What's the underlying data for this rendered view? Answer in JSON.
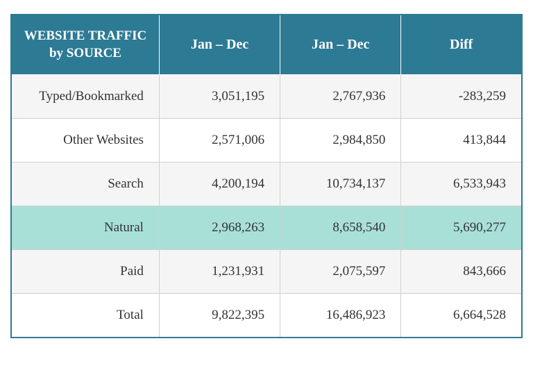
{
  "table": {
    "columns": [
      "WEBSITE TRAFFIC by SOURCE",
      "Jan – Dec",
      "Jan – Dec",
      "Diff"
    ],
    "rows": [
      {
        "label": "Typed/Bookmarked",
        "period1": "3,051,195",
        "period2": "2,767,936",
        "diff": "-283,259",
        "highlight": false
      },
      {
        "label": "Other Websites",
        "period1": "2,571,006",
        "period2": "2,984,850",
        "diff": "413,844",
        "highlight": false
      },
      {
        "label": "Search",
        "period1": "4,200,194",
        "period2": "10,734,137",
        "diff": "6,533,943",
        "highlight": false
      },
      {
        "label": "Natural",
        "period1": "2,968,263",
        "period2": "8,658,540",
        "diff": "5,690,277",
        "highlight": true
      },
      {
        "label": "Paid",
        "period1": "1,231,931",
        "period2": "2,075,597",
        "diff": "843,666",
        "highlight": false
      },
      {
        "label": "Total",
        "period1": "9,822,395",
        "period2": "16,486,923",
        "diff": "6,664,528",
        "highlight": false
      }
    ],
    "header_bg": "#2d7a94",
    "header_text_color": "#ffffff",
    "row_alt_bg": "#f5f5f5",
    "row_bg": "#ffffff",
    "highlight_bg": "#a8e0d8",
    "border_color": "#d0d0d0",
    "outer_border_color": "#2d7a94",
    "font_family": "Georgia",
    "header_fontsize": 20,
    "cell_fontsize": 19
  }
}
